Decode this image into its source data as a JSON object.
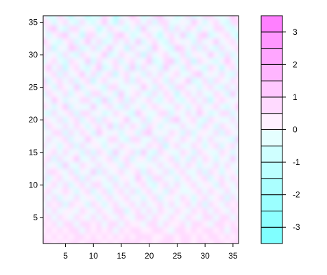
{
  "chart_data": {
    "type": "heatmap",
    "title": "",
    "xlabel": "",
    "ylabel": "",
    "grid": 36,
    "xlim": [
      1,
      36
    ],
    "ylim": [
      1,
      36
    ],
    "x_ticks": [
      "5",
      "10",
      "15",
      "20",
      "25",
      "30",
      "35"
    ],
    "y_ticks": [
      "5",
      "10",
      "15",
      "20",
      "25",
      "30",
      "35"
    ],
    "zlim": [
      -3.5,
      3.5
    ],
    "colorbar": {
      "breaks": [
        -3.5,
        -3.0,
        -2.5,
        -2.0,
        -1.5,
        -1.0,
        -0.5,
        0.0,
        0.5,
        1.0,
        1.5,
        2.0,
        2.5,
        3.0,
        3.5
      ],
      "tick_labels": [
        "-3",
        "-2",
        "-1",
        "0",
        "1",
        "2",
        "3"
      ],
      "colors": [
        "#80ffff",
        "#8dffff",
        "#9bffff",
        "#abffff",
        "#bcffff",
        "#cfffff",
        "#e5ffff",
        "#fff0ff",
        "#ffdaff",
        "#ffc8ff",
        "#ffb6ff",
        "#ffa6ff",
        "#ff97ff",
        "#ff80ff"
      ]
    },
    "z": [
      [
        0.4,
        -0.6,
        -0.3,
        0.9,
        -0.4,
        -1.2,
        0.3,
        -0.5,
        -1.4,
        -0.2,
        -0.7,
        0.8,
        0.2,
        -1.6,
        -0.4,
        0.3,
        1.0,
        0.2,
        -0.6,
        -0.3,
        0.5,
        1.2,
        -0.1,
        0.3,
        -0.8,
        -0.2,
        0.6,
        -0.7,
        -0.4,
        0.5,
        0.8,
        -0.3,
        -0.5,
        0.2,
        1.3,
        0.4
      ],
      [
        0.9,
        0.1,
        -0.8,
        0.3,
        0.6,
        -0.4,
        -0.9,
        0.7,
        -0.2,
        -1.0,
        0.3,
        1.1,
        -0.4,
        -1.1,
        0.6,
        -0.5,
        0.4,
        0.7,
        -0.2,
        0.5,
        -0.9,
        0.6,
        0.9,
        -0.3,
        -0.5,
        0.4,
        -0.1,
        1.3,
        0.2,
        -0.6,
        0.3,
        0.9,
        -0.4,
        -1.0,
        0.5,
        0.8
      ],
      [
        -0.5,
        0.7,
        1.2,
        -0.2,
        -0.6,
        0.5,
        0.9,
        -0.3,
        0.4,
        0.2,
        -1.3,
        -0.4,
        0.8,
        0.3,
        -0.2,
        -0.9,
        0.1,
        -0.6,
        1.2,
        -0.1,
        0.3,
        -0.2,
        0.5,
        -1.0,
        0.7,
        -0.4,
        0.9,
        0.2,
        -0.9,
        0.4,
        -0.2,
        0.5,
        0.8,
        -0.3,
        -0.7,
        0.2
      ],
      [
        0.3,
        -1.0,
        0.2,
        0.7,
        1.1,
        -0.3,
        0.2,
        -1.2,
        0.6,
        0.9,
        -0.2,
        0.4,
        -0.7,
        0.5,
        1.3,
        0.2,
        -0.8,
        -0.3,
        0.4,
        0.9,
        -0.5,
        -1.1,
        0.2,
        0.6,
        -0.3,
        1.0,
        -0.6,
        -0.4,
        0.7,
        1.1,
        -0.8,
        -0.2,
        0.3,
        0.9,
        -0.4,
        -1.2
      ],
      [
        1.0,
        0.2,
        -0.5,
        -0.9,
        0.4,
        0.8,
        -0.6,
        0.3,
        1.0,
        -0.4,
        0.6,
        -0.8,
        -0.3,
        0.9,
        -0.5,
        0.6,
        -0.2,
        1.1,
        -0.7,
        0.2,
        0.8,
        -0.3,
        -0.6,
        0.9,
        0.4,
        -0.2,
        0.3,
        -0.9,
        0.5,
        -0.3,
        0.4,
        1.2,
        -0.5,
        0.2,
        0.6,
        -0.1
      ],
      [
        -0.2,
        0.8,
        -1.1,
        0.4,
        -0.3,
        1.2,
        0.5,
        -0.7,
        -0.2,
        0.7,
        -0.9,
        0.3,
        1.0,
        -0.4,
        0.2,
        -1.2,
        0.8,
        -0.4,
        0.3,
        -0.6,
        1.0,
        0.4,
        -0.2,
        -0.8,
        1.2,
        0.5,
        -0.3,
        0.6,
        -1.0,
        0.8,
        -0.4,
        -0.6,
        0.9,
        -0.2,
        0.3,
        0.7
      ],
      [
        0.6,
        -0.3,
        0.4,
        -0.6,
        0.9,
        -0.2,
        -1.0,
        0.8,
        0.3,
        -0.5,
        0.2,
        1.3,
        -0.6,
        -0.2,
        0.7,
        0.4,
        -0.5,
        0.9,
        -1.1,
        0.5,
        -0.3,
        0.2,
        0.8,
        -0.5,
        -0.2,
        0.7,
        -0.9,
        0.3,
        0.4,
        -0.5,
        1.1,
        0.2,
        -0.7,
        0.5,
        -1.0,
        0.3
      ],
      [
        -0.8,
        0.4,
        0.9,
        -0.2,
        -0.7,
        0.5,
        0.3,
        -0.4,
        1.2,
        -0.9,
        0.5,
        -0.2,
        0.4,
        0.8,
        -1.0,
        0.3,
        0.6,
        -0.3,
        0.2,
        1.1,
        -0.8,
        -0.4,
        0.5,
        1.0,
        -0.6,
        0.2,
        0.5,
        -1.2,
        0.8,
        0.2,
        -0.3,
        -0.9,
        0.4,
        1.0,
        0.2,
        -0.6
      ],
      [
        0.2,
        1.1,
        -0.4,
        0.6,
        -1.2,
        0.3,
        0.8,
        -0.1,
        -0.6,
        0.4,
        1.0,
        -0.7,
        -0.3,
        0.5,
        0.2,
        -0.6,
        1.2,
        -0.8,
        0.5,
        -0.2,
        0.4,
        -0.9,
        1.1,
        -0.3,
        0.3,
        -0.7,
        0.9,
        0.4,
        -0.2,
        -0.8,
        0.6,
        0.3,
        -1.1,
        0.4,
        0.8,
        -0.3
      ],
      [
        -0.4,
        0.3,
        0.7,
        -1.0,
        0.5,
        -0.5,
        0.2,
        1.0,
        -0.3,
        0.6,
        -0.8,
        0.2,
        0.9,
        -1.1,
        0.4,
        0.9,
        -0.2,
        0.3,
        -0.7,
        0.6,
        -0.1,
        0.7,
        -0.4,
        0.2,
        0.8,
        -0.5,
        -0.3,
        0.6,
        1.0,
        -0.4,
        0.2,
        -0.5,
        0.7,
        -0.2,
        -0.6,
        0.9
      ],
      [
        1.3,
        -0.6,
        0.2,
        0.5,
        -0.4,
        0.9,
        -0.7,
        0.4,
        0.6,
        -1.1,
        0.3,
        0.7,
        -0.5,
        0.2,
        -0.4,
        0.5,
        -1.0,
        0.7,
        0.3,
        -0.5,
        0.9,
        0.2,
        -1.0,
        0.6,
        -0.2,
        0.4,
        1.1,
        -0.6,
        -0.5,
        0.7,
        -0.9,
        0.8,
        0.2,
        -0.4,
        0.5,
        0.1
      ],
      [
        0.5,
        0.2,
        -0.9,
        0.8,
        0.3,
        -0.2,
        1.1,
        -0.8,
        0.2,
        0.4,
        -0.4,
        -0.9,
        0.6,
        0.8,
        -0.3,
        -0.2,
        0.4,
        -0.5,
        1.0,
        0.3,
        -0.6,
        0.5,
        0.3,
        -0.8,
        0.6,
        0.9,
        -0.4,
        0.2,
        -0.7,
        0.3,
        0.5,
        -0.2,
        -0.8,
        0.9,
        -0.3,
        0.6
      ],
      [
        -0.6,
        0.9,
        0.3,
        -0.5,
        0.7,
        -1.0,
        0.4,
        0.2,
        -0.9,
        0.8,
        0.5,
        -0.3,
        0.2,
        -0.6,
        1.0,
        -0.4,
        0.2,
        0.8,
        -0.3,
        -0.9,
        0.5,
        -0.2,
        0.7,
        0.4,
        -1.1,
        0.2,
        0.6,
        -0.3,
        0.9,
        -0.2,
        -0.5,
        0.6,
        0.3,
        -0.7,
        1.1,
        -0.2
      ],
      [
        0.3,
        -0.4,
        1.0,
        0.2,
        -0.8,
        0.4,
        -0.3,
        0.9,
        0.5,
        -0.2,
        -0.7,
        1.0,
        -0.9,
        0.3,
        0.5,
        -0.8,
        0.9,
        -0.2,
        0.4,
        0.6,
        -0.4,
        -1.0,
        0.3,
        0.8,
        -0.2,
        -0.6,
        0.4,
        0.9,
        -0.4,
        0.6,
        -1.1,
        0.3,
        0.7,
        0.2,
        -0.5,
        0.4
      ],
      [
        0.8,
        0.3,
        -0.6,
        0.4,
        1.0,
        -0.6,
        0.2,
        -0.5,
        -0.3,
        1.1,
        -0.2,
        0.4,
        0.6,
        -0.3,
        -0.8,
        0.7,
        -0.4,
        0.3,
        -0.6,
        0.2,
        0.9,
        0.4,
        -0.5,
        -0.2,
        0.7,
        0.3,
        -0.9,
        0.2,
        0.5,
        -0.3,
        0.4,
        0.9,
        -0.4,
        -0.8,
        0.3,
        1.0
      ],
      [
        -0.3,
        -0.8,
        0.5,
        -0.2,
        0.3,
        0.8,
        -0.9,
        0.6,
        0.7,
        -0.4,
        0.3,
        -0.6,
        -0.2,
        0.9,
        0.4,
        -0.3,
        -0.6,
        1.1,
        0.2,
        -0.4,
        -0.3,
        0.7,
        0.9,
        -0.6,
        0.4,
        -0.2,
        0.5,
        -0.5,
        1.2,
        0.2,
        -0.6,
        -0.2,
        0.5,
        0.6,
        -0.9,
        0.2
      ],
      [
        0.6,
        0.4,
        -0.2,
        0.9,
        -0.7,
        0.2,
        0.6,
        -1.0,
        0.3,
        0.5,
        -0.9,
        0.8,
        0.3,
        -0.5,
        0.2,
        1.0,
        -0.3,
        -0.4,
        0.7,
        -0.8,
        0.4,
        0.2,
        -0.6,
        0.5,
        1.0,
        -0.4,
        0.3,
        0.8,
        -0.3,
        -0.7,
        0.9,
        0.3,
        -0.2,
        -0.5,
        0.6,
        -0.4
      ],
      [
        -0.9,
        0.6,
        0.3,
        -0.4,
        0.5,
        -0.3,
        0.9,
        0.2,
        -0.8,
        0.3,
        0.6,
        -0.2,
        1.0,
        -0.7,
        0.6,
        -0.5,
        0.8,
        0.2,
        -0.9,
        0.5,
        0.3,
        -0.7,
        0.4,
        -0.3,
        -0.5,
        0.8,
        -0.2,
        0.4,
        -0.6,
        0.9,
        0.2,
        -0.8,
        0.6,
        0.3,
        -0.3,
        0.7
      ],
      [
        0.4,
        -0.2,
        0.8,
        0.5,
        -1.0,
        0.7,
        -0.4,
        0.5,
        0.2,
        -0.6,
        1.1,
        0.3,
        -0.4,
        0.2,
        -0.9,
        0.4,
        0.2,
        -0.7,
        0.5,
        1.2,
        -0.5,
        0.3,
        -0.2,
        0.9,
        0.2,
        -0.6,
        0.7,
        -0.9,
        0.3,
        0.4,
        -0.4,
        0.5,
        -0.6,
        0.9,
        0.2,
        -0.5
      ],
      [
        -0.2,
        0.7,
        -0.5,
        0.3,
        0.6,
        -0.8,
        0.2,
        -0.3,
        1.0,
        0.4,
        -0.5,
        -0.3,
        0.7,
        0.5,
        -0.3,
        -0.8,
        0.6,
        0.9,
        -0.2,
        -0.4,
        0.8,
        -0.9,
        0.6,
        0.2,
        -0.4,
        0.5,
        0.3,
        -0.3,
        0.8,
        -0.5,
        0.7,
        -0.2,
        0.4,
        -0.4,
        -0.7,
        1.0
      ],
      [
        0.7,
        -0.5,
        0.3,
        -0.8,
        0.2,
        0.9,
        -0.6,
        0.7,
        -0.4,
        0.2,
        0.4,
        -1.0,
        0.3,
        -0.2,
        0.8,
        0.3,
        -0.5,
        0.4,
        -0.3,
        0.6,
        0.2,
        0.5,
        -1.1,
        0.4,
        0.7,
        -0.3,
        -0.5,
        0.6,
        0.2,
        -0.8,
        0.3,
        0.6,
        -0.9,
        0.2,
        0.5,
        -0.3
      ],
      [
        -0.5,
        0.3,
        0.9,
        -0.3,
        0.8,
        -0.2,
        0.4,
        -0.9,
        0.6,
        -0.7,
        0.9,
        0.4,
        -0.6,
        1.0,
        -0.4,
        0.2,
        0.7,
        -0.6,
        1.0,
        -0.3,
        -0.6,
        0.8,
        0.3,
        -0.4,
        -0.2,
        0.9,
        0.4,
        -0.7,
        0.5,
        0.3,
        -0.2,
        -0.5,
        0.8,
        0.4,
        -0.6,
        0.2
      ],
      [
        0.2,
        0.8,
        -0.7,
        0.5,
        -0.4,
        0.3,
        1.0,
        -0.2,
        -0.5,
        0.8,
        -0.3,
        0.2,
        0.5,
        -0.8,
        0.3,
        0.6,
        -0.9,
        0.3,
        0.2,
        -0.7,
        0.9,
        -0.4,
        0.2,
        0.7,
        -0.8,
        0.3,
        -0.6,
        0.9,
        -0.3,
        0.6,
        0.4,
        -0.7,
        0.3,
        -0.2,
        1.0,
        -0.4
      ],
      [
        0.9,
        -0.3,
        0.2,
        -0.6,
        1.1,
        -0.5,
        -0.2,
        0.6,
        0.3,
        -0.4,
        0.7,
        -0.5,
        0.2,
        0.4,
        -0.6,
        0.9,
        0.3,
        -0.2,
        -0.5,
        0.4,
        -0.2,
        0.6,
        -0.5,
        0.3,
        0.5,
        -0.4,
        0.8,
        0.2,
        -0.9,
        0.4,
        -0.3,
        0.8,
        -0.2,
        0.6,
        -0.5,
        0.3
      ],
      [
        -0.4,
        0.5,
        0.6,
        0.2,
        -0.3,
        0.7,
        -0.8,
        0.3,
        -0.2,
        1.0,
        -0.6,
        0.8,
        -0.4,
        0.3,
        0.7,
        -0.5,
        0.4,
        0.6,
        -0.8,
        0.7,
        0.3,
        -0.3,
        0.8,
        -0.6,
        0.2,
        0.6,
        -0.2,
        -0.4,
        0.7,
        -0.6,
        0.5,
        0.2,
        -0.7,
        0.4,
        0.3,
        -0.8
      ],
      [
        0.5,
        -0.7,
        0.3,
        0.9,
        -0.5,
        0.2,
        0.5,
        -0.6,
        0.8,
        -0.3,
        0.2,
        -0.4,
        0.9,
        -0.7,
        0.2,
        0.3,
        -0.5,
        1.0,
        0.4,
        -0.6,
        0.5,
        0.9,
        -0.3,
        0.2,
        -0.7,
        0.4,
        0.6,
        -0.3,
        0.2,
        0.8,
        -0.6,
        0.3,
        0.5,
        -0.5,
        0.7,
        0.2
      ],
      [
        -0.6,
        0.2,
        0.8,
        -0.4,
        0.6,
        -0.9,
        0.3,
        0.7,
        -0.4,
        0.5,
        0.9,
        -0.2,
        -0.3,
        0.6,
        -0.5,
        0.8,
        -0.3,
        0.2,
        0.6,
        -0.2,
        -0.8,
        0.4,
        0.5,
        -0.4,
        0.8,
        -0.5,
        0.3,
        0.7,
        -0.5,
        0.2,
        0.4,
        -0.9,
        0.6,
        0.2,
        -0.4,
        0.6
      ],
      [
        0.3,
        0.6,
        -0.4,
        0.2,
        0.7,
        0.4,
        -0.6,
        0.2,
        0.5,
        -0.8,
        0.3,
        0.6,
        -0.7,
        0.2,
        0.8,
        -0.4,
        0.6,
        -0.7,
        0.3,
        0.9,
        -0.3,
        0.2,
        -0.6,
        0.8,
        0.3,
        -0.3,
        -0.5,
        0.4,
        0.8,
        -0.4,
        0.7,
        0.3,
        -0.4,
        0.8,
        -0.2,
        0.4
      ],
      [
        0.8,
        -0.4,
        0.5,
        -0.7,
        0.3,
        -0.3,
        0.9,
        -0.5,
        0.3,
        0.2,
        -0.6,
        0.4,
        0.7,
        -0.5,
        0.3,
        0.6,
        -0.2,
        0.4,
        -0.6,
        0.3,
        0.7,
        -0.6,
        0.4,
        0.3,
        -0.5,
        0.9,
        0.2,
        -0.7,
        0.4,
        0.6,
        -0.3,
        0.2,
        0.9,
        -0.6,
        0.5,
        -0.2
      ],
      [
        -0.3,
        0.7,
        0.2,
        0.6,
        -0.6,
        0.8,
        0.2,
        0.4,
        -0.7,
        0.6,
        0.4,
        -0.8,
        0.3,
        0.9,
        -0.4,
        0.2,
        0.5,
        -0.5,
        0.8,
        -0.4,
        0.3,
        0.6,
        -0.3,
        0.7,
        -0.2,
        0.4,
        0.6,
        -0.2,
        0.5,
        -0.8,
        0.6,
        0.4,
        -0.3,
        0.5,
        0.3,
        0.7
      ],
      [
        0.6,
        -0.2,
        0.7,
        -0.5,
        0.4,
        0.2,
        -0.4,
        0.8,
        0.2,
        -0.3,
        0.7,
        0.3,
        -0.2,
        0.5,
        0.6,
        -0.6,
        0.3,
        0.8,
        -0.2,
        0.5,
        -0.4,
        0.9,
        0.2,
        -0.5,
        0.6,
        0.3,
        -0.4,
        0.7,
        0.3,
        0.5,
        -0.3,
        0.7,
        0.4,
        -0.2,
        0.8,
        0.3
      ],
      [
        0.2,
        0.5,
        -0.3,
        0.8,
        0.3,
        -0.5,
        0.6,
        0.3,
        -0.2,
        0.8,
        -0.4,
        0.6,
        0.4,
        -0.3,
        0.9,
        0.4,
        -0.3,
        0.5,
        0.6,
        -0.2,
        0.7,
        0.3,
        -0.4,
        0.6,
        0.4,
        -0.3,
        0.8,
        0.3,
        -0.4,
        0.6,
        0.8,
        -0.2,
        0.5,
        0.7,
        -0.3,
        0.6
      ],
      [
        0.7,
        0.3,
        0.6,
        -0.2,
        0.7,
        0.5,
        -0.2,
        0.6,
        0.8,
        0.2,
        0.5,
        -0.3,
        0.8,
        0.6,
        -0.2,
        0.7,
        0.4,
        0.2,
        -0.3,
        0.8,
        0.5,
        -0.2,
        0.7,
        0.4,
        0.2,
        0.6,
        -0.3,
        0.5,
        0.9,
        0.3,
        -0.2,
        0.6,
        0.8,
        0.3,
        0.5,
        0.4
      ],
      [
        0.4,
        0.8,
        0.2,
        0.6,
        0.3,
        0.7,
        0.5,
        -0.2,
        0.6,
        0.4,
        0.9,
        0.3,
        0.5,
        -0.2,
        0.7,
        0.3,
        0.8,
        0.5,
        0.4,
        0.2,
        0.6,
        0.9,
        0.3,
        -0.2,
        0.7,
        0.5,
        0.4,
        0.8,
        0.2,
        0.6,
        0.5,
        0.3,
        0.7,
        -0.2,
        0.6,
        0.9
      ],
      [
        0.9,
        0.4,
        0.7,
        0.3,
        0.8,
        0.2,
        0.6,
        0.9,
        0.3,
        0.7,
        0.2,
        0.8,
        0.4,
        0.6,
        0.3,
        0.9,
        0.2,
        0.7,
        0.5,
        0.8,
        0.3,
        0.4,
        0.9,
        0.6,
        0.2,
        0.8,
        0.5,
        0.3,
        0.7,
        0.4,
        0.9,
        0.6,
        0.2,
        0.8,
        0.4,
        0.5
      ],
      [
        0.5,
        0.9,
        0.3,
        0.8,
        0.4,
        0.6,
        0.8,
        0.3,
        0.7,
        0.5,
        0.9,
        0.4,
        0.7,
        0.3,
        0.8,
        0.5,
        0.6,
        0.9,
        0.3,
        0.7,
        0.4,
        0.8,
        0.5,
        0.9,
        0.3,
        0.6,
        0.8,
        0.4,
        0.9,
        0.5,
        0.3,
        0.7,
        0.6,
        0.4,
        0.8,
        0.7
      ]
    ]
  }
}
